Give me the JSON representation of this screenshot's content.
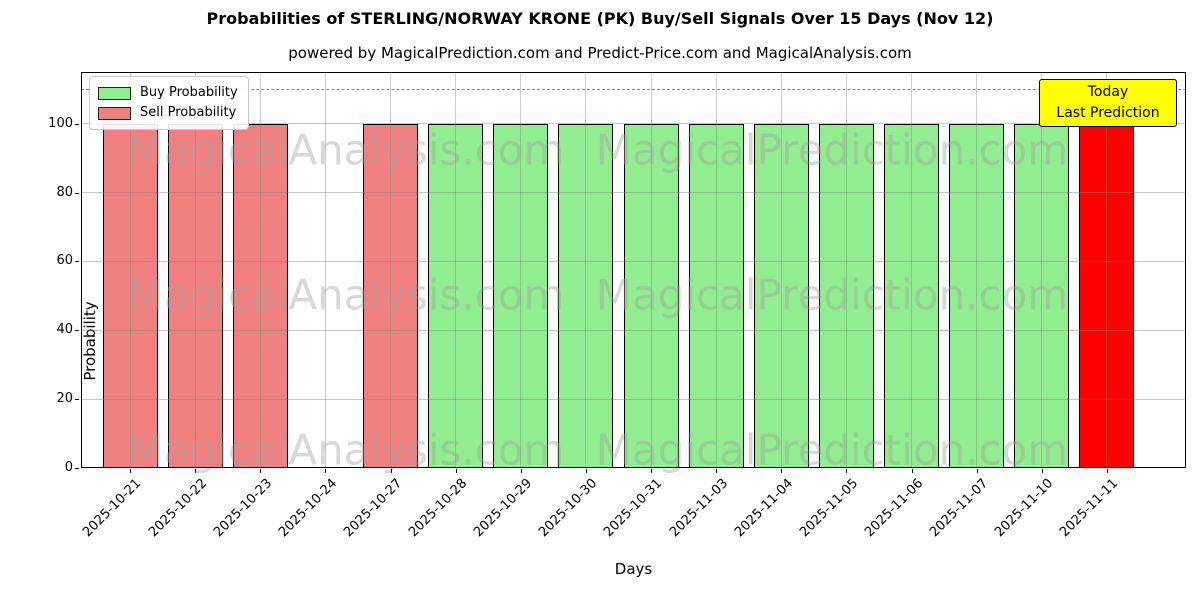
{
  "header": {
    "title": "Probabilities of STERLING/NORWAY KRONE (PK) Buy/Sell Signals Over 15 Days (Nov 12)",
    "subtitle": "powered by MagicalPrediction.com and Predict-Price.com and MagicalAnalysis.com"
  },
  "legend": {
    "items": [
      {
        "label": "Buy Probability",
        "color": "#90ee90"
      },
      {
        "label": "Sell Probability",
        "color": "#f08080"
      }
    ]
  },
  "annotation": {
    "line1": "Today",
    "line2": "Last Prediction",
    "bg_color": "#ffff00"
  },
  "watermarks": {
    "left_text": "MagicalAnalysis.com",
    "right_text": "MagicalPrediction.com"
  },
  "colors": {
    "buy": "#90ee90",
    "sell": "#f08080",
    "today_sell": "#ff0000",
    "grid": "#b0b0b0",
    "dashed_line": "#8a8a8a"
  },
  "chart_data": {
    "type": "bar",
    "title": "Probabilities of STERLING/NORWAY KRONE (PK) Buy/Sell Signals Over 15 Days (Nov 12)",
    "xlabel": "Days",
    "ylabel": "Probability",
    "ylim": [
      0,
      115
    ],
    "yticks": [
      0,
      20,
      40,
      60,
      80,
      100
    ],
    "dashed_line_y": 110,
    "grid": true,
    "legend_position": "upper left",
    "categories": [
      "2025-10-21",
      "2025-10-22",
      "2025-10-23",
      "2025-10-24",
      "2025-10-27",
      "2025-10-28",
      "2025-10-29",
      "2025-10-30",
      "2025-10-31",
      "2025-11-03",
      "2025-11-04",
      "2025-11-05",
      "2025-11-06",
      "2025-11-07",
      "2025-11-10",
      "2025-11-11"
    ],
    "series": [
      {
        "name": "Buy Probability",
        "color": "#90ee90",
        "values": [
          0,
          0,
          0,
          0,
          0,
          100,
          100,
          100,
          100,
          100,
          100,
          100,
          100,
          100,
          100,
          0
        ]
      },
      {
        "name": "Sell Probability",
        "color": "#f08080",
        "values": [
          100,
          100,
          100,
          0,
          100,
          0,
          0,
          0,
          0,
          0,
          0,
          0,
          0,
          0,
          0,
          100
        ]
      }
    ],
    "today_bar": {
      "index": 15,
      "date": "2025-11-11",
      "color": "#ff0000",
      "label": "Today Last Prediction"
    }
  }
}
